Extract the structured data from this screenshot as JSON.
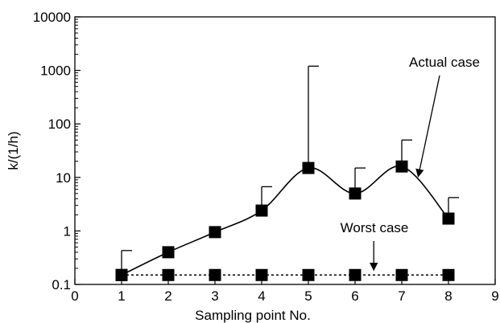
{
  "chart_data": {
    "type": "scatter",
    "xlabel": "Sampling point No.",
    "ylabel": "k/(1/h)",
    "xlim": [
      0,
      9
    ],
    "ylim": [
      0.1,
      10000
    ],
    "yscale": "log",
    "xticks": [
      0,
      1,
      2,
      3,
      4,
      5,
      6,
      7,
      8,
      9
    ],
    "xtick_labels": [
      "0",
      "1",
      "2",
      "3",
      "4",
      "5",
      "6",
      "7",
      "8",
      "9"
    ],
    "yticks": [
      0.1,
      1,
      10,
      100,
      1000,
      10000
    ],
    "ytick_labels": [
      "0.1",
      "1",
      "10",
      "100",
      "1000",
      "10000"
    ],
    "grid": false,
    "series": [
      {
        "name": "Actual case",
        "marker": "square",
        "line": "solid-smooth",
        "x": [
          1,
          2,
          3,
          4,
          5,
          6,
          7,
          8
        ],
        "y": [
          0.15,
          0.4,
          0.95,
          2.4,
          15,
          5,
          16,
          1.7
        ],
        "error_upper": [
          0.43,
          null,
          null,
          6.7,
          1200,
          15,
          50,
          4.2
        ]
      },
      {
        "name": "Worst case",
        "marker": "square",
        "line": "dotted",
        "x": [
          1,
          2,
          3,
          4,
          5,
          6,
          7,
          8
        ],
        "y": [
          0.15,
          0.15,
          0.15,
          0.15,
          0.15,
          0.15,
          0.15,
          0.15
        ]
      }
    ],
    "annotations": [
      {
        "text": "Actual case",
        "points_to": {
          "x": 7.3,
          "y": 9
        }
      },
      {
        "text": "Worst case",
        "points_to": {
          "x": 6.4,
          "y": 0.15
        }
      }
    ],
    "colors": {
      "ink": "#000000",
      "background": "#ffffff"
    }
  }
}
